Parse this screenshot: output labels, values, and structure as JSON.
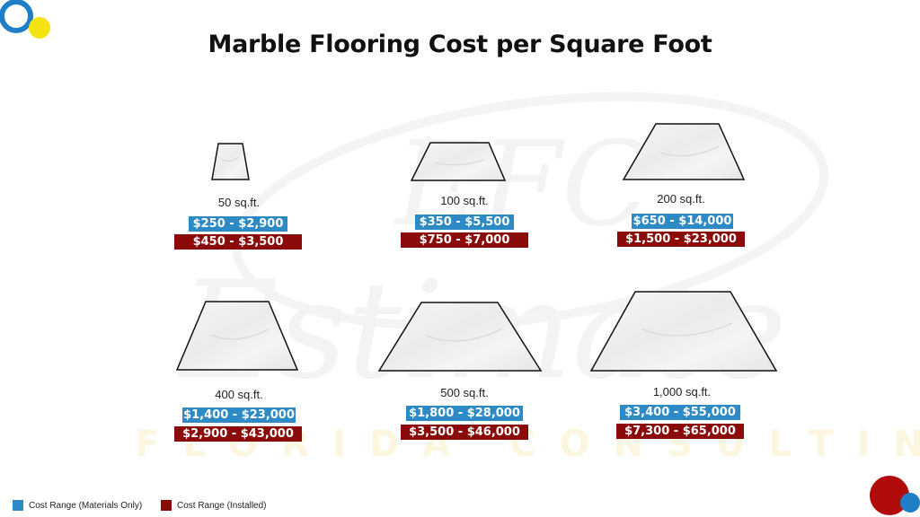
{
  "title": "Marble Flooring Cost per Square Foot",
  "colors": {
    "materials": "#2d8ac4",
    "installed": "#8b0b0b",
    "logo_blue": "#1f7fc6",
    "logo_yellow": "#f3e311",
    "logo_red": "#b00a0a"
  },
  "watermark": {
    "line1": "EFC",
    "line2": "Estimate",
    "line3": "FLORIDA CONSULTING"
  },
  "sizes": [
    {
      "area": "50 sq.ft.",
      "materials": "$250 - $2,900",
      "installed": "$450 - $3,500"
    },
    {
      "area": "100 sq.ft.",
      "materials": "$350 - $5,500",
      "installed": "$750 - $7,000"
    },
    {
      "area": "200 sq.ft.",
      "materials": "$650 - $14,000",
      "installed": "$1,500 - $23,000"
    },
    {
      "area": "400 sq.ft.",
      "materials": "$1,400 - $23,000",
      "installed": "$2,900 - $43,000"
    },
    {
      "area": "500 sq.ft.",
      "materials": "$1,800 - $28,000",
      "installed": "$3,500 - $46,000"
    },
    {
      "area": "1,000 sq.ft.",
      "materials": "$3,400 - $55,000",
      "installed": "$7,300 - $65,000"
    }
  ],
  "legend": {
    "materials_label": "Cost Range (Materials Only)",
    "installed_label": "Cost Range (Installed)"
  }
}
